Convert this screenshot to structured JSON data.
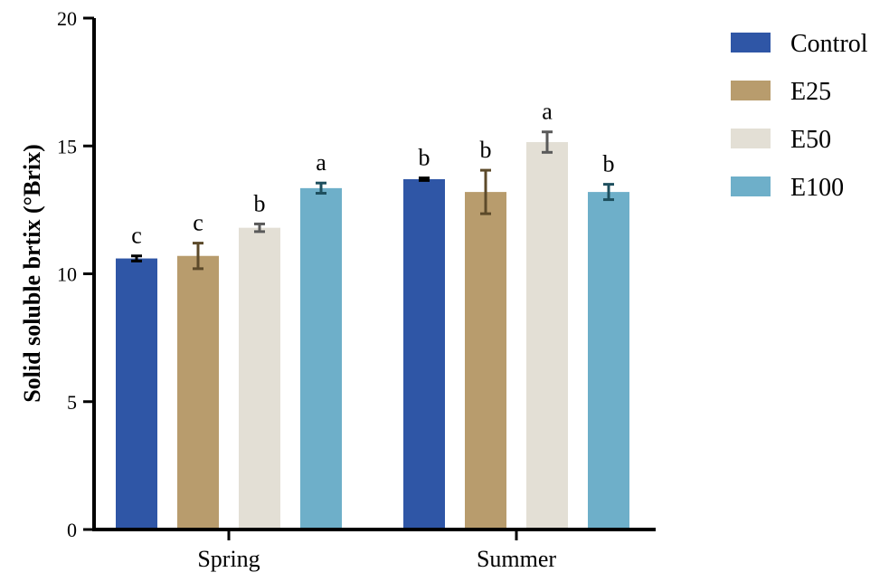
{
  "chart_data": {
    "type": "bar",
    "title": "",
    "xlabel": "",
    "ylabel": "Solid soluble brtix (°Brix)",
    "ylim": [
      0,
      20
    ],
    "yticks": [
      "0",
      "5",
      "10",
      "15",
      "20"
    ],
    "categories": [
      "Spring",
      "Summer"
    ],
    "series": [
      {
        "name": "Control",
        "color": "#2f56a6",
        "err_color": "#000000",
        "values": [
          10.6,
          13.7
        ],
        "errors": [
          0.1,
          0.05
        ],
        "sig": [
          "c",
          "b"
        ]
      },
      {
        "name": "E25",
        "color": "#b89c6d",
        "err_color": "#5c4a2a",
        "values": [
          10.7,
          13.2
        ],
        "errors": [
          0.5,
          0.85
        ],
        "sig": [
          "c",
          "b"
        ]
      },
      {
        "name": "E50",
        "color": "#e3dfd5",
        "err_color": "#5a5a5a",
        "values": [
          11.8,
          15.15
        ],
        "errors": [
          0.15,
          0.4
        ],
        "sig": [
          "b",
          "a"
        ]
      },
      {
        "name": "E100",
        "color": "#6eafc9",
        "err_color": "#1e4f5e",
        "values": [
          13.35,
          13.2
        ],
        "errors": [
          0.2,
          0.3
        ],
        "sig": [
          "a",
          "b"
        ]
      }
    ],
    "legend_position": "top-right"
  }
}
